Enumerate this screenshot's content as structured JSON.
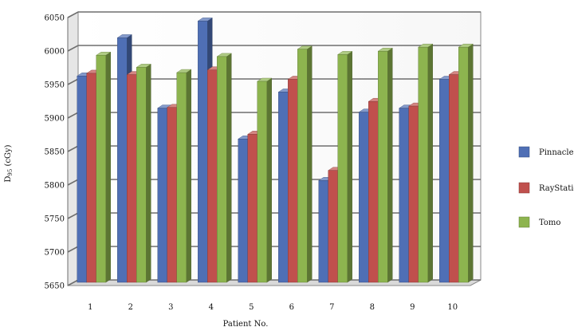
{
  "chart_data": {
    "type": "bar",
    "style": "3d-clustered-column",
    "title": "",
    "xlabel": "Patient No.",
    "ylabel": "D95 (cGy)",
    "ylabel_main": "D",
    "ylabel_sub": "95",
    "ylabel_rest": " (cGy)",
    "ylim": [
      5650,
      6050
    ],
    "yticks": [
      5650,
      5700,
      5750,
      5800,
      5850,
      5900,
      5950,
      6000,
      6050
    ],
    "grid": true,
    "legend_position": "right",
    "categories": [
      "1",
      "2",
      "3",
      "4",
      "5",
      "6",
      "7",
      "8",
      "9",
      "10"
    ],
    "series": [
      {
        "name": "Pinnacle",
        "color": "#4f6fb5",
        "values": [
          5958,
          6015,
          5910,
          6040,
          5864,
          5934,
          5802,
          5904,
          5910,
          5953
        ]
      },
      {
        "name": "RayStation",
        "color": "#c0504d",
        "values": [
          5962,
          5960,
          5911,
          5967,
          5871,
          5953,
          5817,
          5920,
          5913,
          5960
        ]
      },
      {
        "name": "Tomo",
        "color": "#8db44f",
        "values": [
          5989,
          5971,
          5963,
          5987,
          5950,
          5998,
          5990,
          5995,
          6001,
          6001
        ]
      }
    ]
  }
}
